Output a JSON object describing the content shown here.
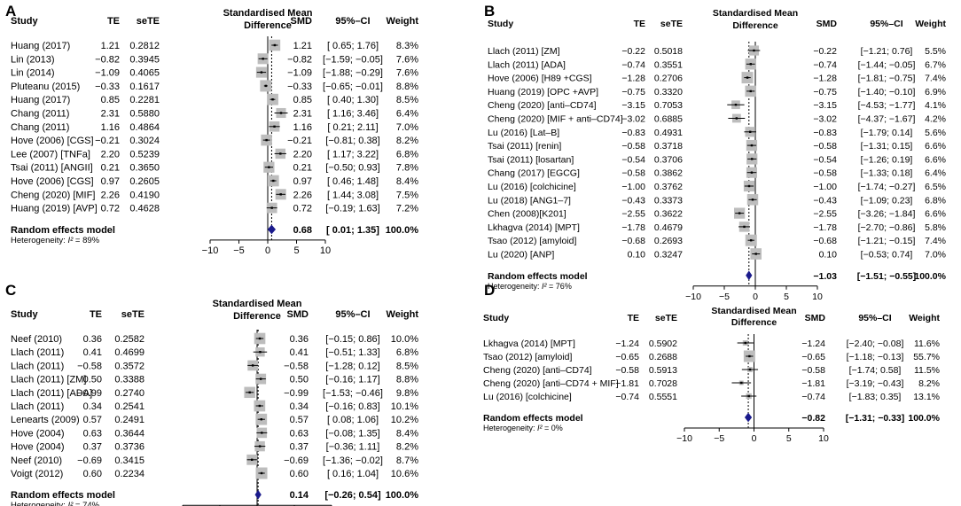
{
  "colors": {
    "square": "#bdbdbd",
    "diamond": "#1a1a8c",
    "ci_line": "#000000",
    "axis": "#000000"
  },
  "chart_data": [
    {
      "type": "forest",
      "panel_label": "A",
      "headers": {
        "study": "Study",
        "te": "TE",
        "sete": "seTE",
        "plot_line1": "Standardised Mean",
        "plot_line2": "Difference",
        "smd": "SMD",
        "ci": "95%–CI",
        "weight": "Weight"
      },
      "xlim": [
        -10,
        10
      ],
      "ticks": [
        -10,
        -5,
        0,
        5,
        10
      ],
      "tick_labels": [
        "−10",
        "−5",
        "0",
        "5",
        "10"
      ],
      "studies": [
        {
          "label": "Huang (2017)",
          "te": 1.21,
          "te_text": "1.21",
          "sete_text": "0.2812",
          "smd_text": "1.21",
          "ci_text": "[ 0.65; 1.76]",
          "lo": 0.65,
          "hi": 1.76,
          "weight": 8.3,
          "weight_text": "8.3%"
        },
        {
          "label": "Lin (2013)",
          "te": -0.82,
          "te_text": "−0.82",
          "sete_text": "0.3945",
          "smd_text": "−0.82",
          "ci_text": "[−1.59; −0.05]",
          "lo": -1.59,
          "hi": -0.05,
          "weight": 7.6,
          "weight_text": "7.6%"
        },
        {
          "label": "Lin (2014)",
          "te": -1.09,
          "te_text": "−1.09",
          "sete_text": "0.4065",
          "smd_text": "−1.09",
          "ci_text": "[−1.88; −0.29]",
          "lo": -1.88,
          "hi": -0.29,
          "weight": 7.6,
          "weight_text": "7.6%"
        },
        {
          "label": "Pluteanu (2015)",
          "te": -0.33,
          "te_text": "−0.33",
          "sete_text": "0.1617",
          "smd_text": "−0.33",
          "ci_text": "[−0.65; −0.01]",
          "lo": -0.65,
          "hi": -0.01,
          "weight": 8.8,
          "weight_text": "8.8%"
        },
        {
          "label": "Huang (2017)",
          "te": 0.85,
          "te_text": "0.85",
          "sete_text": "0.2281",
          "smd_text": "0.85",
          "ci_text": "[ 0.40; 1.30]",
          "lo": 0.4,
          "hi": 1.3,
          "weight": 8.5,
          "weight_text": "8.5%"
        },
        {
          "label": "Chang (2011)",
          "te": 2.31,
          "te_text": "2.31",
          "sete_text": "0.5880",
          "smd_text": "2.31",
          "ci_text": "[ 1.16; 3.46]",
          "lo": 1.16,
          "hi": 3.46,
          "weight": 6.4,
          "weight_text": "6.4%"
        },
        {
          "label": "Chang (2011)",
          "te": 1.16,
          "te_text": "1.16",
          "sete_text": "0.4864",
          "smd_text": "1.16",
          "ci_text": "[ 0.21; 2.11]",
          "lo": 0.21,
          "hi": 2.11,
          "weight": 7.0,
          "weight_text": "7.0%"
        },
        {
          "label": "Hove (2006) [CGS]",
          "te": -0.21,
          "te_text": "−0.21",
          "sete_text": "0.3024",
          "smd_text": "−0.21",
          "ci_text": "[−0.81; 0.38]",
          "lo": -0.81,
          "hi": 0.38,
          "weight": 8.2,
          "weight_text": "8.2%"
        },
        {
          "label": "Lee (2007) [TNFa]",
          "te": 2.2,
          "te_text": "2.20",
          "sete_text": "0.5239",
          "smd_text": "2.20",
          "ci_text": "[ 1.17; 3.22]",
          "lo": 1.17,
          "hi": 3.22,
          "weight": 6.8,
          "weight_text": "6.8%"
        },
        {
          "label": "Tsai (2011) [ANGII]",
          "te": 0.21,
          "te_text": "0.21",
          "sete_text": "0.3650",
          "smd_text": "0.21",
          "ci_text": "[−0.50; 0.93]",
          "lo": -0.5,
          "hi": 0.93,
          "weight": 7.8,
          "weight_text": "7.8%"
        },
        {
          "label": "Hove (2006) [CGS]",
          "te": 0.97,
          "te_text": "0.97",
          "sete_text": "0.2605",
          "smd_text": "0.97",
          "ci_text": "[ 0.46; 1.48]",
          "lo": 0.46,
          "hi": 1.48,
          "weight": 8.4,
          "weight_text": "8.4%"
        },
        {
          "label": "Cheng (2020) [MIF]",
          "te": 2.26,
          "te_text": "2.26",
          "sete_text": "0.4190",
          "smd_text": "2.26",
          "ci_text": "[ 1.44; 3.08]",
          "lo": 1.44,
          "hi": 3.08,
          "weight": 7.5,
          "weight_text": "7.5%"
        },
        {
          "label": "Huang (2019) [AVP]",
          "te": 0.72,
          "te_text": "0.72",
          "sete_text": "0.4628",
          "smd_text": "0.72",
          "ci_text": "[−0.19; 1.63]",
          "lo": -0.19,
          "hi": 1.63,
          "weight": 7.2,
          "weight_text": "7.2%"
        }
      ],
      "summary": {
        "label": "Random effects model",
        "smd": 0.68,
        "lo": 0.01,
        "hi": 1.35,
        "smd_text": "0.68",
        "ci_text": "[ 0.01; 1.35]",
        "weight_text": "100.0%"
      },
      "heterogeneity": {
        "prefix": "Heterogeneity: ",
        "i2_symbol": "I²",
        "value_text": " = 89%"
      }
    },
    {
      "type": "forest",
      "panel_label": "B",
      "headers": {
        "study": "Study",
        "te": "TE",
        "sete": "seTE",
        "plot_line1": "Standardised Mean",
        "plot_line2": "Difference",
        "smd": "SMD",
        "ci": "95%–CI",
        "weight": "Weight"
      },
      "xlim": [
        -10,
        10
      ],
      "ticks": [
        -10,
        -5,
        0,
        5,
        10
      ],
      "tick_labels": [
        "−10",
        "−5",
        "0",
        "5",
        "10"
      ],
      "studies": [
        {
          "label": "Llach (2011) [ZM]",
          "te": -0.22,
          "te_text": "−0.22",
          "sete_text": "0.5018",
          "smd_text": "−0.22",
          "ci_text": "[−1.21; 0.76]",
          "lo": -1.21,
          "hi": 0.76,
          "weight": 5.5,
          "weight_text": "5.5%"
        },
        {
          "label": "Llach (2011) [ADA]",
          "te": -0.74,
          "te_text": "−0.74",
          "sete_text": "0.3551",
          "smd_text": "−0.74",
          "ci_text": "[−1.44; −0.05]",
          "lo": -1.44,
          "hi": -0.05,
          "weight": 6.7,
          "weight_text": "6.7%"
        },
        {
          "label": "Hove (2006) [H89 +CGS]",
          "te": -1.28,
          "te_text": "−1.28",
          "sete_text": "0.2706",
          "smd_text": "−1.28",
          "ci_text": "[−1.81; −0.75]",
          "lo": -1.81,
          "hi": -0.75,
          "weight": 7.4,
          "weight_text": "7.4%"
        },
        {
          "label": "Huang (2019) [OPC +AVP]",
          "te": -0.75,
          "te_text": "−0.75",
          "sete_text": "0.3320",
          "smd_text": "−0.75",
          "ci_text": "[−1.40; −0.10]",
          "lo": -1.4,
          "hi": -0.1,
          "weight": 6.9,
          "weight_text": "6.9%"
        },
        {
          "label": "Cheng (2020) [anti–CD74]",
          "te": -3.15,
          "te_text": "−3.15",
          "sete_text": "0.7053",
          "smd_text": "−3.15",
          "ci_text": "[−4.53; −1.77]",
          "lo": -4.53,
          "hi": -1.77,
          "weight": 4.1,
          "weight_text": "4.1%"
        },
        {
          "label": "Cheng (2020) [MIF + anti–CD74]",
          "te": -3.02,
          "te_text": "−3.02",
          "sete_text": "0.6885",
          "smd_text": "−3.02",
          "ci_text": "[−4.37; −1.67]",
          "lo": -4.37,
          "hi": -1.67,
          "weight": 4.2,
          "weight_text": "4.2%"
        },
        {
          "label": "Lu (2016) [Lat–B]",
          "te": -0.83,
          "te_text": "−0.83",
          "sete_text": "0.4931",
          "smd_text": "−0.83",
          "ci_text": "[−1.79; 0.14]",
          "lo": -1.79,
          "hi": 0.14,
          "weight": 5.6,
          "weight_text": "5.6%"
        },
        {
          "label": "Tsai (2011) [renin]",
          "te": -0.58,
          "te_text": "−0.58",
          "sete_text": "0.3718",
          "smd_text": "−0.58",
          "ci_text": "[−1.31; 0.15]",
          "lo": -1.31,
          "hi": 0.15,
          "weight": 6.6,
          "weight_text": "6.6%"
        },
        {
          "label": "Tsai (2011) [losartan]",
          "te": -0.54,
          "te_text": "−0.54",
          "sete_text": "0.3706",
          "smd_text": "−0.54",
          "ci_text": "[−1.26; 0.19]",
          "lo": -1.26,
          "hi": 0.19,
          "weight": 6.6,
          "weight_text": "6.6%"
        },
        {
          "label": "Chang (2017) [EGCG]",
          "te": -0.58,
          "te_text": "−0.58",
          "sete_text": "0.3862",
          "smd_text": "−0.58",
          "ci_text": "[−1.33; 0.18]",
          "lo": -1.33,
          "hi": 0.18,
          "weight": 6.4,
          "weight_text": "6.4%"
        },
        {
          "label": "Lu (2016) [colchicine]",
          "te": -1.0,
          "te_text": "−1.00",
          "sete_text": "0.3762",
          "smd_text": "−1.00",
          "ci_text": "[−1.74; −0.27]",
          "lo": -1.74,
          "hi": -0.27,
          "weight": 6.5,
          "weight_text": "6.5%"
        },
        {
          "label": "Lu (2018) [ANG1–7]",
          "te": -0.43,
          "te_text": "−0.43",
          "sete_text": "0.3373",
          "smd_text": "−0.43",
          "ci_text": "[−1.09; 0.23]",
          "lo": -1.09,
          "hi": 0.23,
          "weight": 6.8,
          "weight_text": "6.8%"
        },
        {
          "label": "Chen (2008)[K201]",
          "te": -2.55,
          "te_text": "−2.55",
          "sete_text": "0.3622",
          "smd_text": "−2.55",
          "ci_text": "[−3.26; −1.84]",
          "lo": -3.26,
          "hi": -1.84,
          "weight": 6.6,
          "weight_text": "6.6%"
        },
        {
          "label": "Lkhagva (2014) [MPT]",
          "te": -1.78,
          "te_text": "−1.78",
          "sete_text": "0.4679",
          "smd_text": "−1.78",
          "ci_text": "[−2.70; −0.86]",
          "lo": -2.7,
          "hi": -0.86,
          "weight": 5.8,
          "weight_text": "5.8%"
        },
        {
          "label": "Tsao (2012) [amyloid]",
          "te": -0.68,
          "te_text": "−0.68",
          "sete_text": "0.2693",
          "smd_text": "−0.68",
          "ci_text": "[−1.21; −0.15]",
          "lo": -1.21,
          "hi": -0.15,
          "weight": 7.4,
          "weight_text": "7.4%"
        },
        {
          "label": "Lu (2020) [ANP]",
          "te": 0.1,
          "te_text": "0.10",
          "sete_text": "0.3247",
          "smd_text": "0.10",
          "ci_text": "[−0.53; 0.74]",
          "lo": -0.53,
          "hi": 0.74,
          "weight": 7.0,
          "weight_text": "7.0%"
        }
      ],
      "summary": {
        "label": "Random effects model",
        "smd": -1.03,
        "lo": -1.51,
        "hi": -0.55,
        "smd_text": "−1.03",
        "ci_text": "[−1.51; −0.55]",
        "weight_text": "100.0%"
      },
      "heterogeneity": {
        "prefix": "Heterogeneity: ",
        "i2_symbol": "I²",
        "value_text": " = 76%"
      }
    },
    {
      "type": "forest",
      "panel_label": "C",
      "headers": {
        "study": "Study",
        "te": "TE",
        "sete": "seTE",
        "plot_line1": "Standardised Mean",
        "plot_line2": "Difference",
        "smd": "SMD",
        "ci": "95%–CI",
        "weight": "Weight"
      },
      "xlim": [
        -10,
        10
      ],
      "ticks": [
        -10,
        -5,
        0,
        5,
        10
      ],
      "tick_labels": [
        "−10",
        "−5",
        "0",
        "5",
        "10"
      ],
      "studies": [
        {
          "label": "Neef (2010)",
          "te": 0.36,
          "te_text": "0.36",
          "sete_text": "0.2582",
          "smd_text": "0.36",
          "ci_text": "[−0.15; 0.86]",
          "lo": -0.15,
          "hi": 0.86,
          "weight": 10.0,
          "weight_text": "10.0%"
        },
        {
          "label": "Llach (2011)",
          "te": 0.41,
          "te_text": "0.41",
          "sete_text": "0.4699",
          "smd_text": "0.41",
          "ci_text": "[−0.51; 1.33]",
          "lo": -0.51,
          "hi": 1.33,
          "weight": 6.8,
          "weight_text": "6.8%"
        },
        {
          "label": "Llach (2011)",
          "te": -0.58,
          "te_text": "−0.58",
          "sete_text": "0.3572",
          "smd_text": "−0.58",
          "ci_text": "[−1.28; 0.12]",
          "lo": -1.28,
          "hi": 0.12,
          "weight": 8.5,
          "weight_text": "8.5%"
        },
        {
          "label": "Llach (2011) [ZM]",
          "te": 0.5,
          "te_text": "0.50",
          "sete_text": "0.3388",
          "smd_text": "0.50",
          "ci_text": "[−0.16; 1.17]",
          "lo": -0.16,
          "hi": 1.17,
          "weight": 8.8,
          "weight_text": "8.8%"
        },
        {
          "label": "Llach (2011) [ADA]",
          "te": -0.99,
          "te_text": "−0.99",
          "sete_text": "0.2740",
          "smd_text": "−0.99",
          "ci_text": "[−1.53; −0.46]",
          "lo": -1.53,
          "hi": -0.46,
          "weight": 9.8,
          "weight_text": "9.8%"
        },
        {
          "label": "Llach (2011)",
          "te": 0.34,
          "te_text": "0.34",
          "sete_text": "0.2541",
          "smd_text": "0.34",
          "ci_text": "[−0.16; 0.83]",
          "lo": -0.16,
          "hi": 0.83,
          "weight": 10.1,
          "weight_text": "10.1%"
        },
        {
          "label": "Lenearts (2009)",
          "te": 0.57,
          "te_text": "0.57",
          "sete_text": "0.2491",
          "smd_text": "0.57",
          "ci_text": "[ 0.08; 1.06]",
          "lo": 0.08,
          "hi": 1.06,
          "weight": 10.2,
          "weight_text": "10.2%"
        },
        {
          "label": "Hove (2004)",
          "te": 0.63,
          "te_text": "0.63",
          "sete_text": "0.3644",
          "smd_text": "0.63",
          "ci_text": "[−0.08; 1.35]",
          "lo": -0.08,
          "hi": 1.35,
          "weight": 8.4,
          "weight_text": "8.4%"
        },
        {
          "label": "Hove (2004)",
          "te": 0.37,
          "te_text": "0.37",
          "sete_text": "0.3736",
          "smd_text": "0.37",
          "ci_text": "[−0.36; 1.11]",
          "lo": -0.36,
          "hi": 1.11,
          "weight": 8.2,
          "weight_text": "8.2%"
        },
        {
          "label": "Neef (2010)",
          "te": -0.69,
          "te_text": "−0.69",
          "sete_text": "0.3415",
          "smd_text": "−0.69",
          "ci_text": "[−1.36; −0.02]",
          "lo": -1.36,
          "hi": -0.02,
          "weight": 8.7,
          "weight_text": "8.7%"
        },
        {
          "label": "Voigt (2012)",
          "te": 0.6,
          "te_text": "0.60",
          "sete_text": "0.2234",
          "smd_text": "0.60",
          "ci_text": "[ 0.16; 1.04]",
          "lo": 0.16,
          "hi": 1.04,
          "weight": 10.6,
          "weight_text": "10.6%"
        }
      ],
      "summary": {
        "label": "Random effects model",
        "smd": 0.14,
        "lo": -0.26,
        "hi": 0.54,
        "smd_text": "0.14",
        "ci_text": "[−0.26; 0.54]",
        "weight_text": "100.0%"
      },
      "heterogeneity": {
        "prefix": "Heterogeneity: ",
        "i2_symbol": "I²",
        "value_text": " = 74%"
      }
    },
    {
      "type": "forest",
      "panel_label": "D",
      "headers": {
        "study": "Study",
        "te": "TE",
        "sete": "seTE",
        "plot_line1": "Standardised Mean",
        "plot_line2": "Difference",
        "smd": "SMD",
        "ci": "95%–CI",
        "weight": "Weight"
      },
      "xlim": [
        -10,
        10
      ],
      "ticks": [
        -10,
        -5,
        0,
        5,
        10
      ],
      "tick_labels": [
        "−10",
        "−5",
        "0",
        "5",
        "10"
      ],
      "studies": [
        {
          "label": "Lkhagva (2014) [MPT]",
          "te": -1.24,
          "te_text": "−1.24",
          "sete_text": "0.5902",
          "smd_text": "−1.24",
          "ci_text": "[−2.40; −0.08]",
          "lo": -2.4,
          "hi": -0.08,
          "weight": 11.6,
          "weight_text": "11.6%"
        },
        {
          "label": "Tsao (2012) [amyloid]",
          "te": -0.65,
          "te_text": "−0.65",
          "sete_text": "0.2688",
          "smd_text": "−0.65",
          "ci_text": "[−1.18; −0.13]",
          "lo": -1.18,
          "hi": -0.13,
          "weight": 55.7,
          "weight_text": "55.7%"
        },
        {
          "label": "Cheng (2020) [anti–CD74]",
          "te": -0.58,
          "te_text": "−0.58",
          "sete_text": "0.5913",
          "smd_text": "−0.58",
          "ci_text": "[−1.74; 0.58]",
          "lo": -1.74,
          "hi": 0.58,
          "weight": 11.5,
          "weight_text": "11.5%"
        },
        {
          "label": "Cheng (2020) [anti–CD74 + MIF]",
          "te": -1.81,
          "te_text": "−1.81",
          "sete_text": "0.7028",
          "smd_text": "−1.81",
          "ci_text": "[−3.19; −0.43]",
          "lo": -3.19,
          "hi": -0.43,
          "weight": 8.2,
          "weight_text": "8.2%"
        },
        {
          "label": "Lu (2016) [colchicine]",
          "te": -0.74,
          "te_text": "−0.74",
          "sete_text": "0.5551",
          "smd_text": "−0.74",
          "ci_text": "[−1.83; 0.35]",
          "lo": -1.83,
          "hi": 0.35,
          "weight": 13.1,
          "weight_text": "13.1%"
        }
      ],
      "summary": {
        "label": "Random effects model",
        "smd": -0.82,
        "lo": -1.31,
        "hi": -0.33,
        "smd_text": "−0.82",
        "ci_text": "[−1.31; −0.33]",
        "weight_text": "100.0%"
      },
      "heterogeneity": {
        "prefix": "Heterogeneity: ",
        "i2_symbol": "I²",
        "value_text": " = 0%"
      }
    }
  ]
}
